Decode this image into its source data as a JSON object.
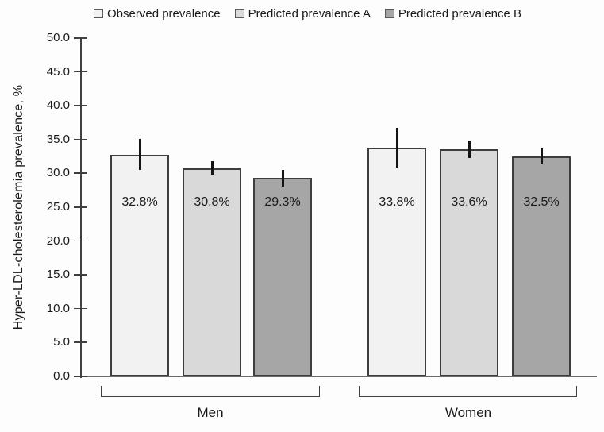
{
  "chart_data": {
    "type": "bar",
    "title": "",
    "ylabel": "Hyper-LDL-cholesterolemia prevalence, %",
    "xlabel": "",
    "ylim": [
      0,
      50
    ],
    "ytick_step": 5,
    "ytick_decimals": 1,
    "grid": false,
    "legend_position": "top",
    "categories": [
      "Men",
      "Women"
    ],
    "series": [
      {
        "name": "Observed prevalence",
        "fill": "#f2f2f2",
        "values": [
          32.8,
          33.8
        ],
        "errors": [
          2.3,
          2.9
        ],
        "labels": [
          "32.8%",
          "33.8%"
        ]
      },
      {
        "name": "Predicted prevalence A",
        "fill": "#d9d9d9",
        "values": [
          30.8,
          33.6
        ],
        "errors": [
          1.0,
          1.3
        ],
        "labels": [
          "30.8%",
          "33.6%"
        ]
      },
      {
        "name": "Predicted prevalence B",
        "fill": "#a6a6a6",
        "values": [
          29.3,
          32.5
        ],
        "errors": [
          1.2,
          1.2
        ],
        "labels": [
          "29.3%",
          "32.5%"
        ]
      }
    ],
    "colors": {
      "bar_border": "#3d3d3d",
      "axis": "#404040",
      "baseline": "#6b6b6b",
      "error_bar": "#141414",
      "text": "#1a1a1a",
      "background": "#fdfdfd"
    }
  }
}
